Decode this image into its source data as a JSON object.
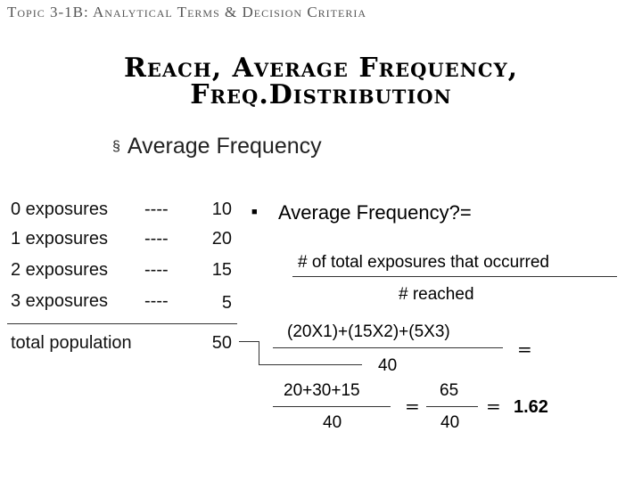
{
  "topic": "Topic 3-1B: Analytical Terms & Decision Criteria",
  "title_line1": "Reach, Average Frequency,",
  "title_line2": "Freq.Distribution",
  "section_bullet": "§",
  "section_heading": "Average Frequency",
  "distribution": [
    {
      "label": "0 exposures",
      "dash": "----",
      "value": "10"
    },
    {
      "label": "1 exposures",
      "dash": "----",
      "value": "20"
    },
    {
      "label": "2 exposures",
      "dash": "----",
      "value": "15"
    },
    {
      "label": "3 exposures",
      "dash": "----",
      "value": "5"
    }
  ],
  "total_label": "total population",
  "total_value": "50",
  "right_bullet": "■",
  "formula_heading": "Average Frequency?=",
  "numerator_text": "# of total exposures that occurred",
  "denominator_text": "# reached",
  "calc_numerator": "(20X1)+(15X2)+(5X3)",
  "calc_denominator": "40",
  "equals": "=",
  "sum_numerator": "20+30+15",
  "sum_denominator": "40",
  "frac_numerator": "65",
  "frac_denominator": "40",
  "result": "1.62"
}
